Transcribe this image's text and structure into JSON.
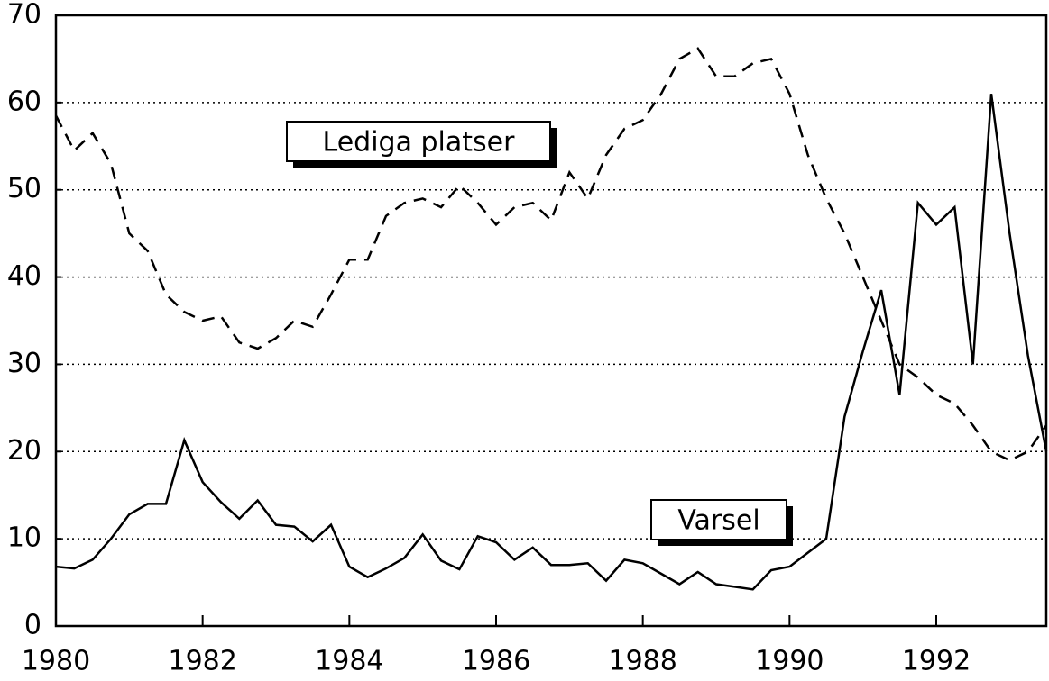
{
  "chart_data": {
    "type": "line",
    "x": [
      1980,
      1980.25,
      1980.5,
      1980.75,
      1981,
      1981.25,
      1981.5,
      1981.75,
      1982,
      1982.25,
      1982.5,
      1982.75,
      1983,
      1983.25,
      1983.5,
      1983.75,
      1984,
      1984.25,
      1984.5,
      1984.75,
      1985,
      1985.25,
      1985.5,
      1985.75,
      1986,
      1986.25,
      1986.5,
      1986.75,
      1987,
      1987.25,
      1987.5,
      1987.75,
      1988,
      1988.25,
      1988.5,
      1988.75,
      1989,
      1989.25,
      1989.5,
      1989.75,
      1990,
      1990.25,
      1990.5,
      1990.75,
      1991,
      1991.25,
      1991.5,
      1991.75,
      1992,
      1992.25,
      1992.5,
      1992.75,
      1993,
      1993.25,
      1993.5
    ],
    "series": [
      {
        "name": "Varsel",
        "color": "#000000",
        "line_style": "solid",
        "values": [
          6.8,
          6.6,
          7.6,
          10,
          12.8,
          14,
          14,
          21.3,
          16.5,
          14.2,
          12.3,
          14.4,
          11.6,
          11.4,
          9.7,
          11.6,
          6.8,
          5.6,
          6.6,
          7.8,
          10.5,
          7.5,
          6.5,
          10.3,
          9.6,
          7.6,
          9,
          7,
          7,
          7.2,
          5.2,
          7.6,
          7.2,
          6,
          4.8,
          6.2,
          4.8,
          4.5,
          4.2,
          6.4,
          6.8,
          8.4,
          10,
          24,
          31.5,
          38.5,
          26.5,
          48.5,
          46,
          48,
          30,
          61,
          45,
          31,
          20
        ]
      },
      {
        "name": "Lediga platser",
        "color": "#000000",
        "line_style": "dashed",
        "values": [
          58.5,
          54.5,
          56.5,
          53,
          45,
          43,
          38,
          36,
          35,
          35.5,
          32.5,
          31.8,
          33,
          35,
          34.3,
          38,
          42,
          42,
          47,
          48.5,
          49,
          48,
          50.5,
          48.5,
          46,
          48,
          48.5,
          46.5,
          52,
          49,
          54,
          57,
          58,
          61,
          65,
          66.2,
          63,
          63,
          64.5,
          65,
          61,
          54,
          49,
          45,
          40,
          35,
          30,
          28.5,
          26.5,
          25.5,
          23,
          20,
          19,
          20,
          23
        ]
      }
    ],
    "xlim": [
      1980,
      1993.5
    ],
    "xticks": [
      1980,
      1982,
      1984,
      1986,
      1988,
      1990,
      1992
    ],
    "ylim": [
      0,
      70
    ],
    "yticks": [
      0,
      10,
      20,
      30,
      40,
      50,
      60,
      70
    ],
    "grid": true
  }
}
